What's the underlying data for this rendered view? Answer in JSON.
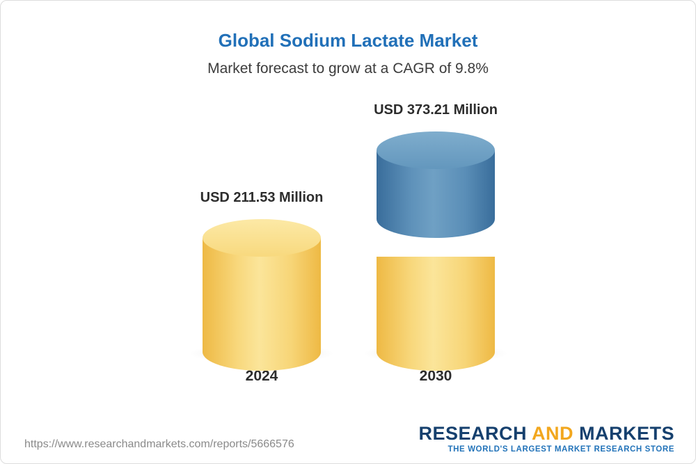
{
  "header": {
    "title": "Global Sodium Lactate Market",
    "subtitle": "Market forecast to grow at a CAGR of 9.8%"
  },
  "chart_data": {
    "type": "bar",
    "variant": "3d-cylinder",
    "categories": [
      "2024",
      "2030"
    ],
    "values": [
      211.53,
      373.21
    ],
    "value_labels": [
      "USD 211.53 Million",
      "USD 373.21 Million"
    ],
    "unit": "USD Million",
    "title": "Global Sodium Lactate Market",
    "subtitle": "Market forecast to grow at a CAGR of 9.8%",
    "cagr_percent": 9.8,
    "ylim": [
      0,
      373.21
    ],
    "grid": false,
    "legend": "none",
    "colors": {
      "base_segment": "#f6cd62",
      "growth_segment": "#44779f"
    },
    "notes": "2030 cylinder is stacked: yellow base height equals the 2024 value, blue top section is the growth increment from 211.53 to 373.21"
  },
  "footer": {
    "url": "https://www.researchandmarkets.com/reports/5666576",
    "logo": {
      "research": "RESEARCH",
      "and": "AND",
      "markets": "MARKETS",
      "tagline": "THE WORLD'S LARGEST MARKET RESEARCH STORE"
    }
  }
}
